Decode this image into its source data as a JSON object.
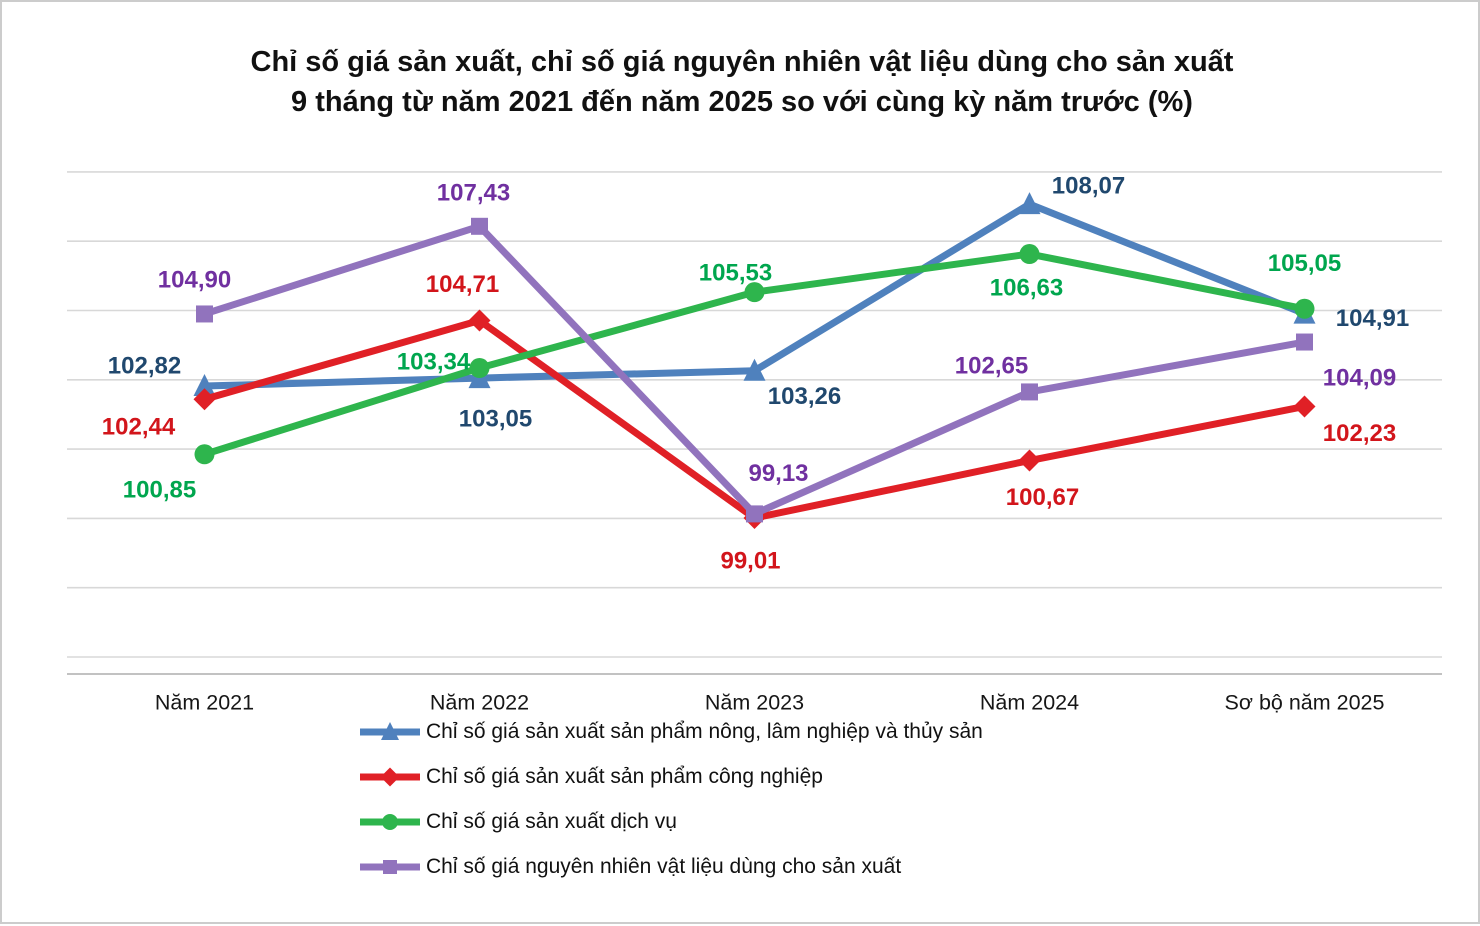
{
  "title": {
    "line1": "Chỉ số giá sản xuất, chỉ số giá nguyên nhiên vật liệu dùng cho sản xuất",
    "line2": "9 tháng từ năm 2021 đến năm 2025 so với cùng kỳ năm trước (%)"
  },
  "chart_data": {
    "type": "line",
    "title": "Chỉ số giá sản xuất, chỉ số giá nguyên nhiên vật liệu dùng cho sản xuất 9 tháng từ năm 2021 đến năm 2025 so với cùng kỳ năm trước (%)",
    "unit": "%",
    "categories": [
      "Năm 2021",
      "Năm 2022",
      "Năm 2023",
      "Năm 2024",
      "Sơ bộ năm 2025"
    ],
    "series": [
      {
        "name": "Chỉ số giá sản xuất sản phẩm nông, lâm nghiệp và thủy sản",
        "marker": "triangle",
        "color": "#4F81BD",
        "label_color": "#20486E",
        "values": [
          102.82,
          103.05,
          103.26,
          108.07,
          104.91
        ],
        "labels": [
          "102,82",
          "103,05",
          "103,26",
          "108,07",
          "104,91"
        ]
      },
      {
        "name": "Chỉ số giá sản xuất sản phẩm công nghiệp",
        "marker": "diamond",
        "color": "#E02026",
        "label_color": "#D2151B",
        "values": [
          102.44,
          104.71,
          99.01,
          100.67,
          102.23
        ],
        "labels": [
          "102,44",
          "104,71",
          "99,01",
          "100,67",
          "102,23"
        ]
      },
      {
        "name": "Chỉ số giá sản xuất dịch vụ",
        "marker": "circle",
        "color": "#2EB54D",
        "label_color": "#00A64E",
        "values": [
          100.85,
          103.34,
          105.53,
          106.63,
          105.05
        ],
        "labels": [
          "100,85",
          "103,34",
          "105,53",
          "106,63",
          "105,05"
        ]
      },
      {
        "name": "Chỉ số giá nguyên nhiên vật liệu dùng cho sản xuất",
        "marker": "square",
        "color": "#9173BD",
        "label_color": "#7030A0",
        "values": [
          104.9,
          107.43,
          99.13,
          102.65,
          104.09
        ],
        "labels": [
          "104,90",
          "107,43",
          "99,13",
          "102,65",
          "104,09"
        ]
      }
    ],
    "ylim": [
      94.6,
      109.4
    ],
    "gridline_values": [
      95,
      97,
      99,
      101,
      103,
      105,
      107,
      109
    ],
    "grid": true,
    "legend_position": "bottom",
    "grid_color": "#D8D8D8",
    "axis_color": "#ADADAD"
  }
}
